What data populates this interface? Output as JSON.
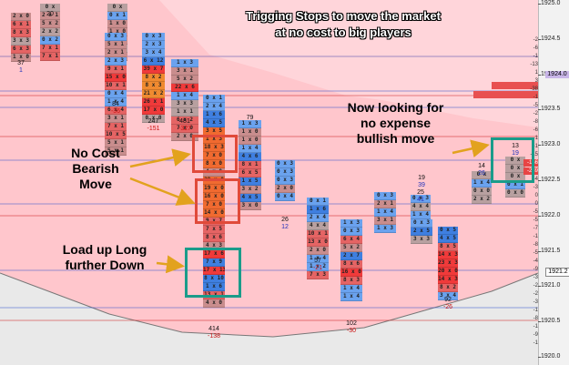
{
  "title_lines": [
    "Trigging Stops to move the market",
    "at no cost to big players"
  ],
  "annotations": {
    "bearish": [
      "No Cost",
      "Bearish",
      "Move"
    ],
    "long": [
      "Load up Long",
      "further Down"
    ],
    "bullish": [
      "Now looking for",
      "no expense",
      "bullish move"
    ]
  },
  "price_axis": {
    "ticks": [
      "1925.0",
      "1924.5",
      "1924.0",
      "1923.5",
      "1923.0",
      "1922.5",
      "1922.0",
      "1921.5",
      "1921.0",
      "1920.5",
      "1920.0"
    ],
    "current_price": "1924.0",
    "current_price2": "1921.2"
  },
  "right_delta_labels": [
    "-2",
    "-6",
    "-1",
    "-13",
    "1",
    "3",
    "-38",
    "-1",
    "-5",
    "-2",
    "-8",
    "-6",
    "-1",
    "-1",
    "-15",
    "-166",
    "-239",
    "-4",
    "-3",
    "0",
    "0",
    "-5",
    "-5",
    "-7",
    "-1",
    "-8",
    "-5",
    "-4",
    "-9",
    "-3",
    "-2",
    "-2",
    "-3",
    "-1",
    "-8",
    "-1",
    "-9",
    "-1"
  ],
  "colors": {
    "bg": "#ffc6cc",
    "bid_red": "#f44d4d",
    "ask_blue": "#4a8ee8",
    "box_red": "#e8402e",
    "box_teal": "#1a9c8a",
    "arrow": "#e0a020"
  },
  "columns": [
    {
      "footer_volume": "37",
      "footer_delta": "1",
      "cells": [
        "2 x 0",
        "6 x 1",
        "8 x 3",
        "3 x 3",
        "6 x 3",
        "1 x 0"
      ]
    },
    {
      "footer_volume": "20",
      "footer_delta": "",
      "cells": [
        "0 x",
        "2 x 1",
        "5 x 2",
        "2 x 2",
        "0 x 2",
        "7 x 1",
        "7 x 1"
      ]
    },
    {
      "footer_volume": "",
      "footer_delta": "",
      "cells": [
        "0 x",
        "0 x 1",
        "1 x 0",
        "1 x 0",
        "1 x 0",
        "0 x 0",
        "5 x 0"
      ]
    },
    {
      "footer_volume": "84",
      "footer_delta": "-36",
      "cells": [
        "0 x 3",
        "5 x 1",
        "2 x 1",
        "2 x 3",
        "9 x 1",
        "15 x 0",
        "10 x 1",
        "0 x 4",
        "1 x 4",
        "6 x 4",
        "3 x 1",
        "7 x 1",
        "10 x 5",
        "5 x 1",
        "5 x 1"
      ]
    },
    {
      "footer_volume": "247",
      "footer_delta": "-151",
      "cells": [
        "0 x 3",
        "2 x 3",
        "3 x 4",
        "6 x 12",
        "39 x 7",
        "8 x 2",
        "8 x 3",
        "21 x 2",
        "26 x 1",
        "17 x 0",
        "0 x 0"
      ]
    },
    {
      "footer_volume": "481",
      "footer_delta": "-327",
      "cells": [
        "1 x 3",
        "3 x 1",
        "5 x 2",
        "22 x 6",
        "1 x 4",
        "3 x 3",
        "1 x 1",
        "6 x 2",
        "7 x 0",
        "2 x 0"
      ]
    },
    {
      "footer_volume": "414",
      "footer_delta": "-138",
      "cells": [
        "0 x 1",
        "2 x 4",
        "1 x 6",
        "4 x 5",
        "3 x 5",
        "1 x 3",
        "18 x 3",
        "7 x 0",
        "8 x 0",
        "4 x 0",
        "29 x 0",
        "19 x 0",
        "16 x 0",
        "7 x 0",
        "14 x 0",
        "9 x 7",
        "7 x 5",
        "8 x 6",
        "4 x 3",
        "17 x 6",
        "7 x 9",
        "17 x 13",
        "8 x 10",
        "1 x 6",
        "13 x 1",
        "4 x 0"
      ]
    },
    {
      "footer_volume": "79",
      "footer_delta": "",
      "cells": [
        "1 x 3",
        "1 x 0",
        "1 x 0",
        "1 x 4",
        "4 x 6",
        "8 x 1",
        "6 x 5",
        "1 x 5",
        "3 x 2",
        "4 x 5",
        "3 x 0"
      ]
    },
    {
      "footer_volume": "26",
      "footer_delta": "12",
      "cells": [
        "0 x 3",
        "0 x 3",
        "0 x 3",
        "2 x 0",
        "0 x 4"
      ]
    },
    {
      "footer_volume": "57",
      "footer_delta": "-21",
      "cells": [
        "0 x 1",
        "1 x 6",
        "2 x 4",
        "4 x 4",
        "10 x 1",
        "13 x 0",
        "2 x 0",
        "1 x 4",
        "1 x 2",
        "7 x 3"
      ]
    },
    {
      "footer_volume": "102",
      "footer_delta": "-30",
      "cells": [
        "1 x 3",
        "0 x 3",
        "6 x 4",
        "5 x 2",
        "2 x 7",
        "8 x 6",
        "16 x 0",
        "8 x 3",
        "1 x 4",
        "1 x 4"
      ]
    },
    {
      "footer_volume": "",
      "footer_delta": "",
      "cells": [
        "0 x 3",
        "2 x 1",
        "1 x 4",
        "3 x 1",
        "1 x 3"
      ]
    },
    {
      "footer_volume": "25",
      "footer_delta": "41",
      "cells": [
        "0 x 3",
        "4 x 4",
        "1 x 4",
        "3 x 3",
        "3 x 2",
        "7 x 3"
      ]
    },
    {
      "footer_volume": "19",
      "footer_delta": "39",
      "cells": [
        "0 x 3",
        "2 x 5",
        "3 x 3"
      ]
    },
    {
      "footer_volume": "92",
      "footer_delta": "-26",
      "cells": [
        "0 x 5",
        "4 x 5",
        "8 x 5",
        "14 x 3",
        "23 x 3",
        "20 x 0",
        "14 x 3",
        "8 x 2",
        "3 x 4"
      ]
    },
    {
      "footer_volume": "14",
      "footer_delta": "26",
      "cells": [
        "0 x",
        "1 x 4",
        "0 x 0",
        "2 x 2"
      ]
    },
    {
      "footer_volume": "13",
      "footer_delta": "19",
      "cells": [
        "0 x",
        "0 x",
        "0 x",
        "0 x 1",
        "0 x 0"
      ]
    }
  ]
}
